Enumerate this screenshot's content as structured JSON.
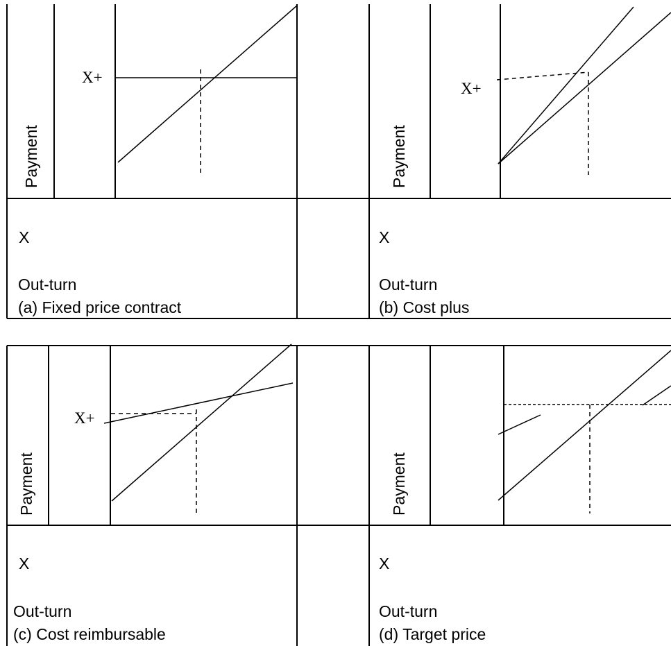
{
  "panels": [
    {
      "id": "a",
      "y_label": "Payment",
      "x_marker": "X",
      "x_label": "Out-turn",
      "caption": "(a) Fixed price contract",
      "point_label": "X+"
    },
    {
      "id": "b",
      "y_label": "Payment",
      "x_marker": "X",
      "x_label": "Out-turn",
      "caption": "(b) Cost plus",
      "point_label": "X+"
    },
    {
      "id": "c",
      "y_label": "Payment",
      "x_marker": "X",
      "x_label": "Out-turn",
      "caption": "(c) Cost reimbursable",
      "point_label": "X+"
    },
    {
      "id": "d",
      "y_label": "Payment",
      "x_marker": "X",
      "x_label": "Out-turn",
      "caption": "(d) Target price"
    }
  ],
  "colors": {
    "stroke": "#000000",
    "background": "#ffffff"
  }
}
